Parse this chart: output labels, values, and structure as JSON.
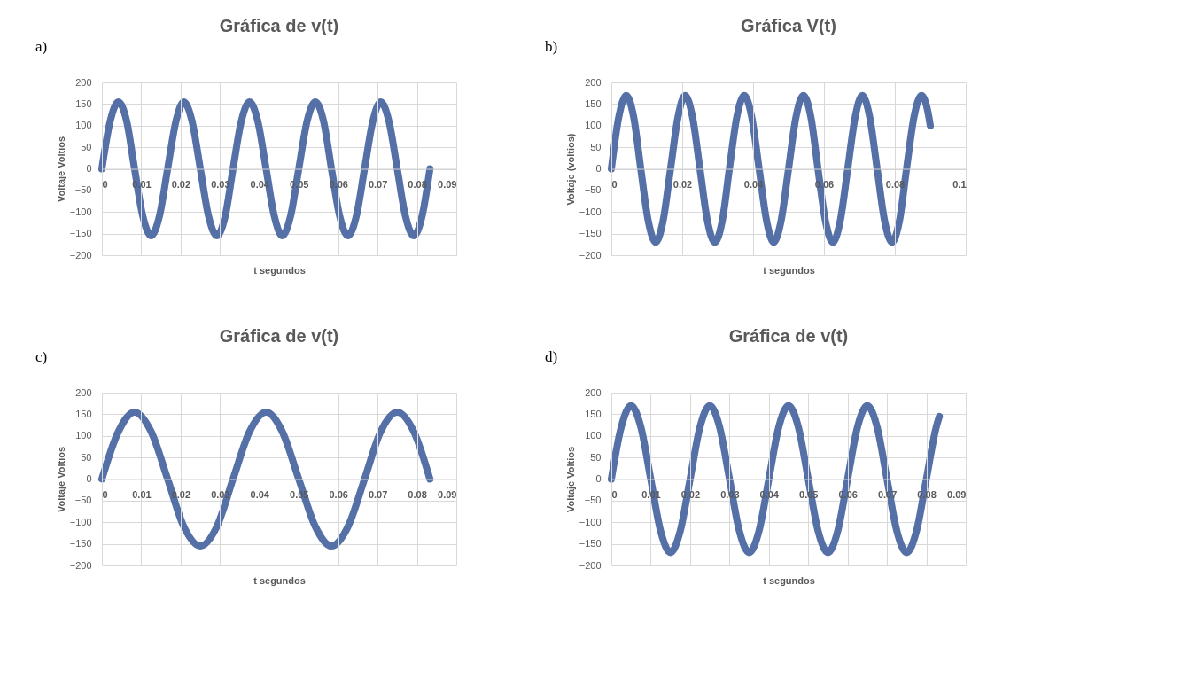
{
  "chart_data": [
    {
      "type": "line",
      "title": "Gráfica de v(t)",
      "xlabel": "t segundos",
      "ylabel": "Voltaje Voltios",
      "annotations": [
        "a)"
      ],
      "line_style": "solid",
      "color": "#5470a6",
      "grid": true,
      "xlim": [
        0,
        0.09
      ],
      "xticks": [
        0,
        0.01,
        0.02,
        0.03,
        0.04,
        0.05,
        0.06,
        0.07,
        0.08,
        0.09
      ],
      "ylim": [
        -200,
        200
      ],
      "yticks": [
        -200,
        -150,
        -100,
        -50,
        0,
        50,
        100,
        150,
        200
      ],
      "x": [
        0,
        0.0021,
        0.0042,
        0.0063,
        0.0083,
        0.0104,
        0.0125,
        0.0146,
        0.0167,
        0.0188,
        0.0208,
        0.0229,
        0.025,
        0.0271,
        0.0292,
        0.0313,
        0.0333,
        0.0354,
        0.0375,
        0.0396,
        0.0417,
        0.0438,
        0.0458,
        0.0479,
        0.05,
        0.0521,
        0.0542,
        0.0563,
        0.0583,
        0.0604,
        0.0625,
        0.0646,
        0.0667,
        0.0688,
        0.0708,
        0.0729,
        0.075,
        0.0771,
        0.0792,
        0.0813,
        0.0833
      ],
      "values": [
        0,
        110,
        155,
        110,
        0,
        -110,
        -155,
        -110,
        0,
        110,
        155,
        110,
        0,
        -110,
        -155,
        -110,
        0,
        110,
        155,
        110,
        0,
        -110,
        -155,
        -110,
        0,
        110,
        155,
        110,
        0,
        -110,
        -155,
        -110,
        0,
        110,
        155,
        110,
        0,
        -110,
        -155,
        -110,
        0
      ]
    },
    {
      "type": "line",
      "title": "Gráfica V(t)",
      "xlabel": "t segundos",
      "ylabel": "Voltaje  (voltios)",
      "annotations": [
        "b)"
      ],
      "line_style": "solid",
      "color": "#5470a6",
      "grid": true,
      "xlim": [
        0,
        0.1
      ],
      "xticks": [
        0,
        0.02,
        0.04,
        0.06,
        0.08,
        0.1
      ],
      "ylim": [
        -200,
        200
      ],
      "yticks": [
        -200,
        -150,
        -100,
        -50,
        0,
        50,
        100,
        150,
        200
      ],
      "x": [
        0,
        0.0021,
        0.0042,
        0.0063,
        0.0083,
        0.0104,
        0.0125,
        0.0146,
        0.0167,
        0.0188,
        0.0208,
        0.0229,
        0.025,
        0.0271,
        0.0292,
        0.0313,
        0.0333,
        0.0354,
        0.0375,
        0.0396,
        0.0417,
        0.0438,
        0.0458,
        0.0479,
        0.05,
        0.0521,
        0.0542,
        0.0563,
        0.0583,
        0.0604,
        0.0625,
        0.0646,
        0.0667,
        0.0688,
        0.0708,
        0.0729,
        0.075,
        0.0771,
        0.0792,
        0.0813,
        0.0833,
        0.0854,
        0.0875,
        0.0896,
        0.09
      ],
      "values": [
        0,
        120,
        170,
        120,
        0,
        -120,
        -170,
        -120,
        0,
        120,
        170,
        120,
        0,
        -120,
        -170,
        -120,
        0,
        120,
        170,
        120,
        0,
        -120,
        -170,
        -120,
        0,
        120,
        170,
        120,
        0,
        -120,
        -170,
        -120,
        0,
        120,
        170,
        120,
        0,
        -120,
        -170,
        -120,
        0,
        120,
        170,
        120,
        100
      ]
    },
    {
      "type": "line",
      "title": "Gráfica de v(t)",
      "xlabel": "t segundos",
      "ylabel": "Voltaje Voltios",
      "annotations": [
        "c)"
      ],
      "line_style": "solid",
      "color": "#5470a6",
      "grid": true,
      "xlim": [
        0,
        0.09
      ],
      "xticks": [
        0,
        0.01,
        0.02,
        0.03,
        0.04,
        0.05,
        0.06,
        0.07,
        0.08,
        0.09
      ],
      "ylim": [
        -200,
        200
      ],
      "yticks": [
        -200,
        -150,
        -100,
        -50,
        0,
        50,
        100,
        150,
        200
      ],
      "x": [
        0,
        0.0042,
        0.0083,
        0.0125,
        0.0167,
        0.0208,
        0.025,
        0.0292,
        0.0333,
        0.0375,
        0.0417,
        0.0458,
        0.05,
        0.0542,
        0.0583,
        0.0625,
        0.0667,
        0.0708,
        0.075,
        0.0792,
        0.0833
      ],
      "values": [
        0,
        110,
        155,
        110,
        0,
        -110,
        -155,
        -110,
        0,
        110,
        155,
        110,
        0,
        -110,
        -155,
        -110,
        0,
        110,
        155,
        110,
        0
      ]
    },
    {
      "type": "line",
      "title": "Gráfica de v(t)",
      "xlabel": "t segundos",
      "ylabel": "Voltaje Voltios",
      "annotations": [
        "d)"
      ],
      "line_style": "solid",
      "color": "#5470a6",
      "grid": true,
      "xlim": [
        0,
        0.09
      ],
      "xticks": [
        0,
        0.01,
        0.02,
        0.03,
        0.04,
        0.05,
        0.06,
        0.07,
        0.08,
        0.09
      ],
      "ylim": [
        -200,
        200
      ],
      "yticks": [
        -200,
        -150,
        -100,
        -50,
        0,
        50,
        100,
        150,
        200
      ],
      "x": [
        0,
        0.0025,
        0.005,
        0.0075,
        0.01,
        0.0125,
        0.015,
        0.0175,
        0.02,
        0.0225,
        0.025,
        0.0275,
        0.03,
        0.0325,
        0.035,
        0.0375,
        0.04,
        0.0425,
        0.045,
        0.0475,
        0.05,
        0.0525,
        0.055,
        0.0575,
        0.06,
        0.0625,
        0.065,
        0.0675,
        0.07,
        0.0725,
        0.075,
        0.0775,
        0.08,
        0.0825,
        0.0833
      ],
      "values": [
        0,
        120,
        170,
        120,
        0,
        -120,
        -170,
        -120,
        0,
        120,
        170,
        120,
        0,
        -120,
        -170,
        -120,
        0,
        120,
        170,
        120,
        0,
        -120,
        -170,
        -120,
        0,
        120,
        170,
        120,
        0,
        -120,
        -170,
        -120,
        0,
        120,
        145
      ]
    }
  ]
}
